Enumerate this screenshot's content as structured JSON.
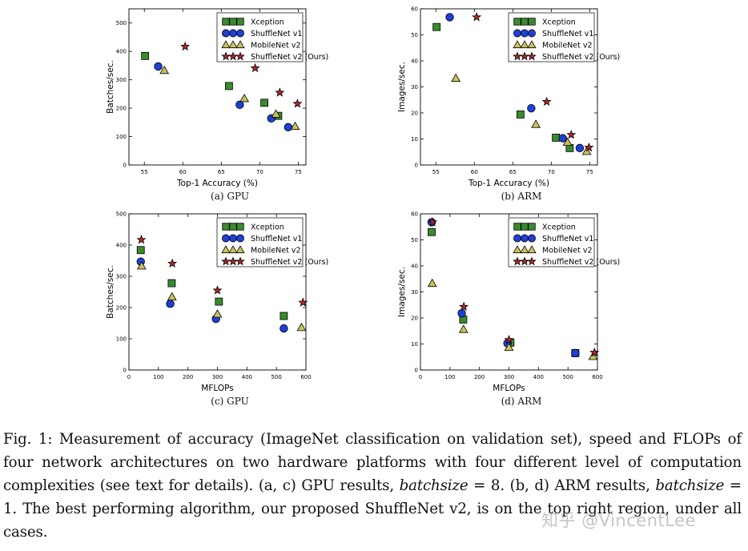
{
  "legend": [
    "Xception",
    "ShuffleNet v1",
    "MobileNet v2",
    "ShuffleNet v2 (Ours)"
  ],
  "colors": {
    "Xception": "#3a8a2e",
    "ShuffleNet v1": "#1f3fd6",
    "MobileNet v2": "#c9c25a",
    "ShuffleNet v2 (Ours)": "#b4262a"
  },
  "chart_data": [
    {
      "type": "scatter",
      "subcaption": "(a) GPU",
      "xlabel": "Top-1 Accuracy (%)",
      "ylabel": "Batches/sec.",
      "xlim": [
        53,
        76
      ],
      "ylim": [
        0,
        550
      ],
      "xticks": [
        55,
        60,
        65,
        70,
        75
      ],
      "yticks": [
        0,
        100,
        200,
        300,
        400,
        500
      ],
      "legend_position": "top-right",
      "series": [
        {
          "name": "Xception",
          "marker": "square",
          "points": [
            [
              55.1,
              384
            ],
            [
              66.0,
              278
            ],
            [
              70.6,
              219
            ],
            [
              72.4,
              173
            ]
          ]
        },
        {
          "name": "ShuffleNet v1",
          "marker": "circle",
          "points": [
            [
              56.8,
              347
            ],
            [
              67.4,
              212
            ],
            [
              71.5,
              164
            ],
            [
              73.7,
              133
            ]
          ]
        },
        {
          "name": "MobileNet v2",
          "marker": "triangle",
          "points": [
            [
              57.6,
              333
            ],
            [
              68.0,
              234
            ],
            [
              72.1,
              179
            ],
            [
              74.6,
              136
            ]
          ]
        },
        {
          "name": "ShuffleNet v2 (Ours)",
          "marker": "star",
          "points": [
            [
              60.3,
              417
            ],
            [
              69.4,
              341
            ],
            [
              72.6,
              255
            ],
            [
              74.9,
              216
            ]
          ]
        }
      ]
    },
    {
      "type": "scatter",
      "subcaption": "(b) ARM",
      "xlabel": "Top-1 Accuracy (%)",
      "ylabel": "Images/sec.",
      "xlim": [
        53,
        76
      ],
      "ylim": [
        0,
        60
      ],
      "xticks": [
        55,
        60,
        65,
        70,
        75
      ],
      "yticks": [
        0,
        10,
        20,
        30,
        40,
        50,
        60
      ],
      "legend_position": "top-right",
      "series": [
        {
          "name": "Xception",
          "marker": "square",
          "points": [
            [
              55.1,
              53
            ],
            [
              66.0,
              19.4
            ],
            [
              70.6,
              10.5
            ],
            [
              72.4,
              6.5
            ]
          ]
        },
        {
          "name": "ShuffleNet v1",
          "marker": "circle",
          "points": [
            [
              56.8,
              56.8
            ],
            [
              67.4,
              21.8
            ],
            [
              71.5,
              10.3
            ],
            [
              73.7,
              6.5
            ]
          ]
        },
        {
          "name": "MobileNet v2",
          "marker": "triangle",
          "points": [
            [
              57.6,
              33.3
            ],
            [
              68.0,
              15.6
            ],
            [
              72.1,
              8.7
            ],
            [
              74.6,
              5.2
            ]
          ]
        },
        {
          "name": "ShuffleNet v2 (Ours)",
          "marker": "star",
          "points": [
            [
              60.3,
              56.8
            ],
            [
              69.4,
              24.3
            ],
            [
              72.6,
              11.6
            ],
            [
              74.9,
              6.7
            ]
          ]
        }
      ]
    },
    {
      "type": "scatter",
      "subcaption": "(c) GPU",
      "xlabel": "MFLOPs",
      "ylabel": "Batches/sec.",
      "xlim": [
        0,
        600
      ],
      "ylim": [
        0,
        500
      ],
      "xticks": [
        0,
        100,
        200,
        300,
        400,
        500,
        600
      ],
      "yticks": [
        0,
        100,
        200,
        300,
        400,
        500
      ],
      "legend_position": "top-right",
      "series": [
        {
          "name": "Xception",
          "marker": "square",
          "points": [
            [
              40,
              384
            ],
            [
              145,
              278
            ],
            [
              305,
              219
            ],
            [
              525,
              173
            ]
          ]
        },
        {
          "name": "ShuffleNet v1",
          "marker": "circle",
          "points": [
            [
              40,
              347
            ],
            [
              140,
              212
            ],
            [
              295,
              164
            ],
            [
              525,
              133
            ]
          ]
        },
        {
          "name": "MobileNet v2",
          "marker": "triangle",
          "points": [
            [
              43,
              333
            ],
            [
              146,
              234
            ],
            [
              300,
              179
            ],
            [
              585,
              136
            ]
          ]
        },
        {
          "name": "ShuffleNet v2 (Ours)",
          "marker": "star",
          "points": [
            [
              42,
              417
            ],
            [
              147,
              341
            ],
            [
              300,
              255
            ],
            [
              590,
              216
            ]
          ]
        }
      ]
    },
    {
      "type": "scatter",
      "subcaption": "(d) ARM",
      "xlabel": "MFLOPs",
      "ylabel": "Images/sec.",
      "xlim": [
        0,
        600
      ],
      "ylim": [
        0,
        60
      ],
      "xticks": [
        0,
        100,
        200,
        300,
        400,
        500,
        600
      ],
      "yticks": [
        0,
        10,
        20,
        30,
        40,
        50,
        60
      ],
      "legend_position": "top-right",
      "series": [
        {
          "name": "Xception",
          "marker": "square",
          "points": [
            [
              38,
              53
            ],
            [
              145,
              19.4
            ],
            [
              305,
              10.5
            ],
            [
              525,
              6.5
            ]
          ]
        },
        {
          "name": "ShuffleNet v1",
          "marker": "circle",
          "points": [
            [
              38,
              56.8
            ],
            [
              140,
              21.8
            ],
            [
              295,
              10.3
            ],
            [
              525,
              6.5
            ]
          ]
        },
        {
          "name": "MobileNet v2",
          "marker": "triangle",
          "points": [
            [
              40,
              33.3
            ],
            [
              146,
              15.6
            ],
            [
              300,
              8.7
            ],
            [
              585,
              5.2
            ]
          ]
        },
        {
          "name": "ShuffleNet v2 (Ours)",
          "marker": "star",
          "points": [
            [
              41,
              56.8
            ],
            [
              147,
              24.3
            ],
            [
              300,
              11.6
            ],
            [
              590,
              6.7
            ]
          ]
        }
      ]
    }
  ],
  "caption": {
    "p1": "Fig. 1: Measurement of accuracy (ImageNet classification on validation set), speed and FLOPs of four network architectures on two hardware platforms with four different level of computation complexities (see text for details). (a, c) GPU results, ",
    "v1": "batchsize",
    "p2": " = 8. (b, d) ARM results, ",
    "v2": "batchsize",
    "p3": " = 1. The best performing algorithm, our proposed ShuffleNet v2, is on the top right region, under all cases."
  },
  "watermark": "知乎 @VincentLee"
}
